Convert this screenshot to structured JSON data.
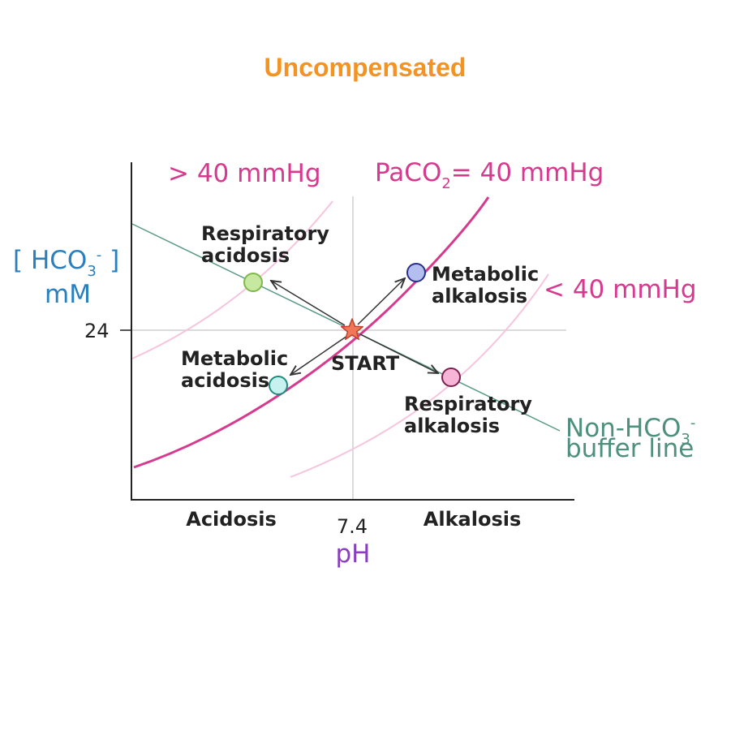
{
  "title": "Uncompensated",
  "y_axis": {
    "label_main": "[ HCO",
    "label_sub": "3",
    "label_sup": "-",
    "label_close": " ]",
    "unit": "mM",
    "tick": "24"
  },
  "x_axis": {
    "tick": "7.4",
    "label": "pH",
    "left_region": "Acidosis",
    "right_region": "Alkalosis"
  },
  "isobars": {
    "high": "> 40 mmHg",
    "normal_main": "PaCO",
    "normal_sub": "2",
    "normal_rest": "= 40 mmHg",
    "low": "< 40 mmHg"
  },
  "buffer_line": {
    "line1_main": "Non-HCO",
    "line1_sub": "3",
    "line1_sup": "-",
    "line2": "buffer line"
  },
  "points": {
    "start": "START",
    "resp_acidosis": [
      "Respiratory",
      "acidosis"
    ],
    "metab_alkalosis": [
      "Metabolic",
      "alkalosis"
    ],
    "metab_acidosis": [
      "Metabolic",
      "acidosis"
    ],
    "resp_alkalosis": [
      "Respiratory",
      "alkalosis"
    ]
  },
  "colors": {
    "title": "#f39322",
    "isobar": "#d63a8f",
    "isobar_light": "#f6c4dc",
    "hco3_label": "#2a7fbf",
    "buffer": "#5a9a88",
    "buffer_text": "#4f8f7d",
    "ph_label": "#8a3fbf",
    "resp_acidosis_fill": "#c6e8a0",
    "metab_alkalosis_fill": "#b4bff0",
    "metab_acidosis_fill": "#c6f1ee",
    "resp_alkalosis_fill": "#f6b4d6",
    "start_fill": "#f07858"
  }
}
